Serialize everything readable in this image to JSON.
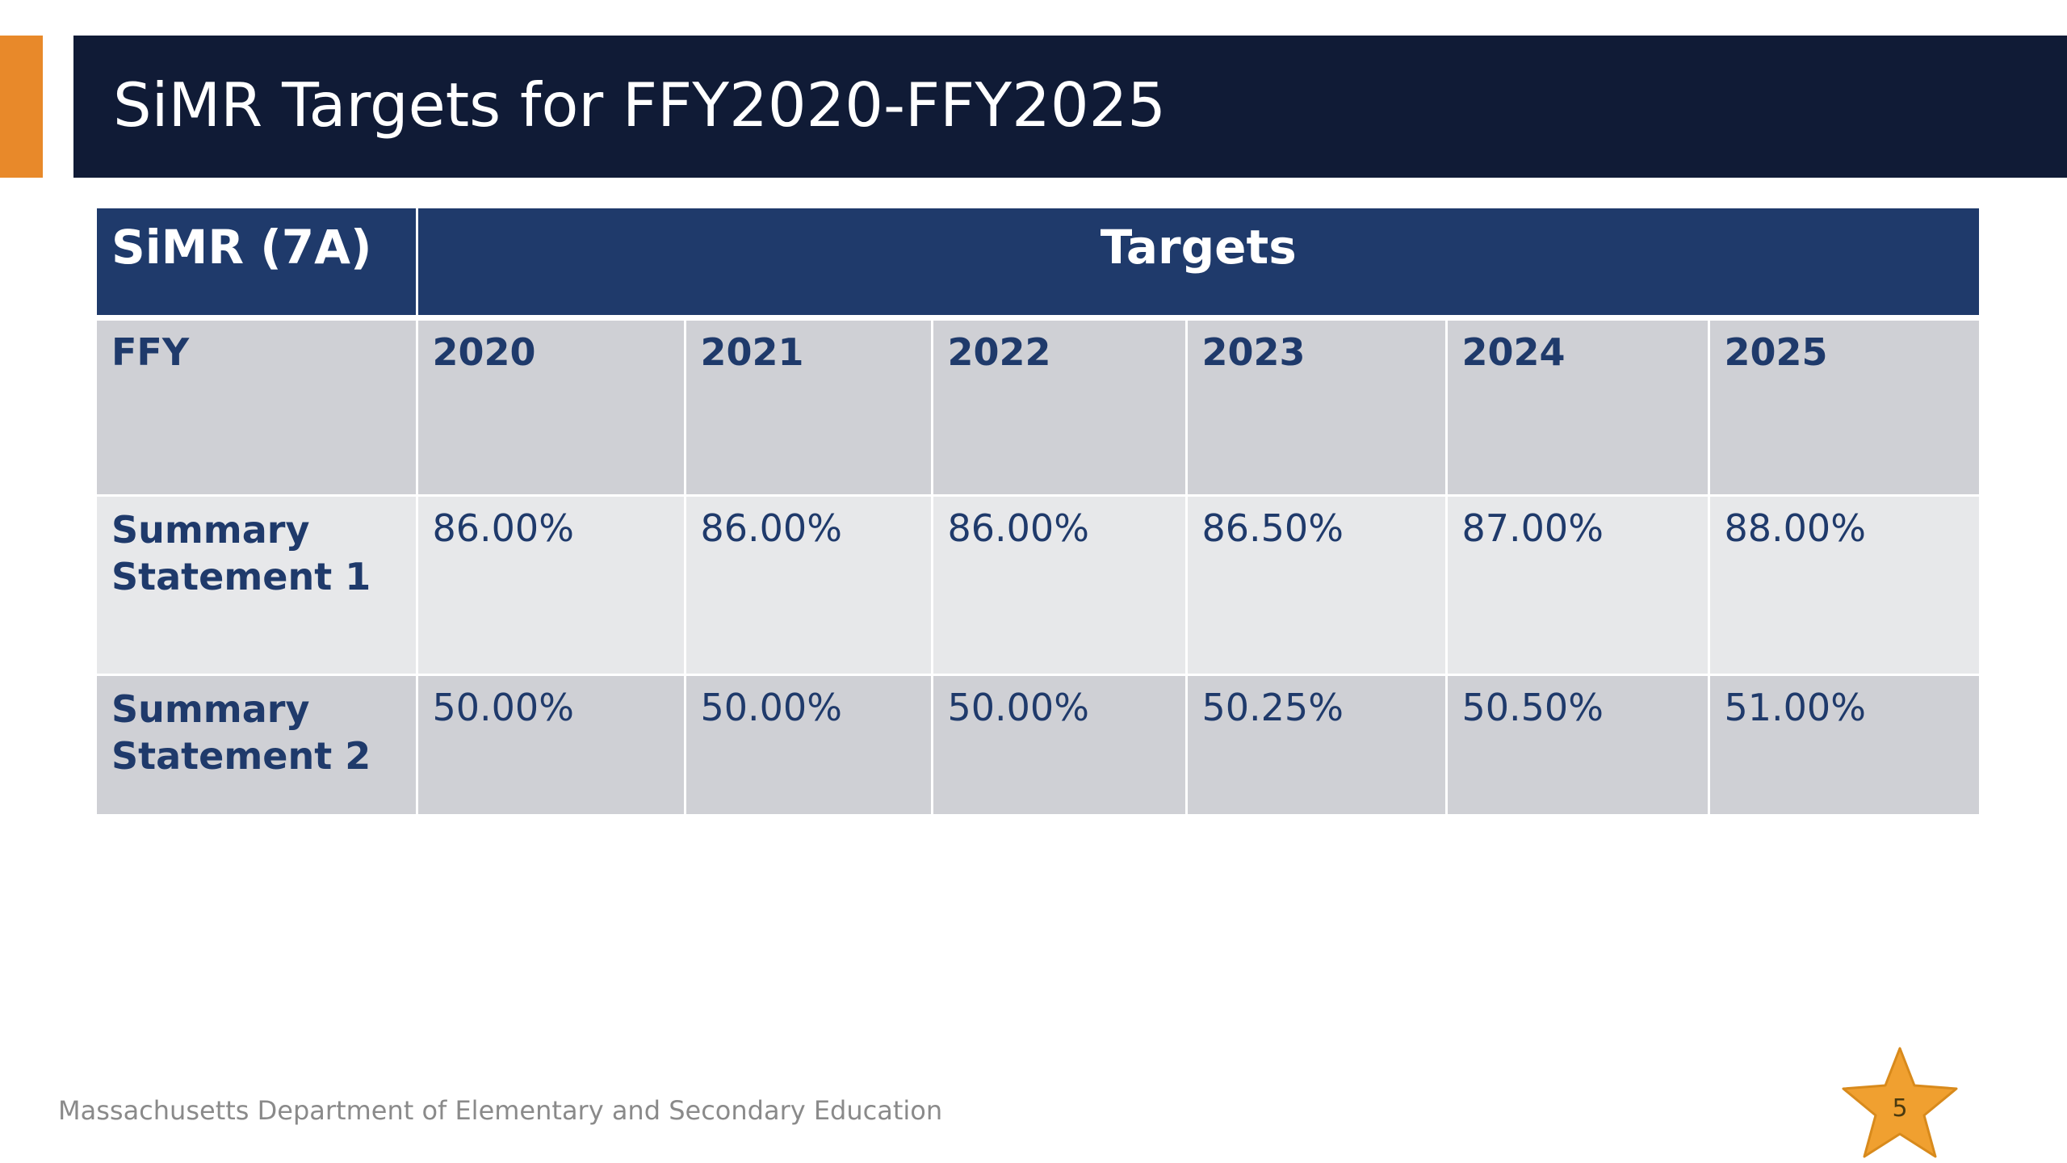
{
  "title": "SiMR Targets for FFY2020-FFY2025",
  "table": {
    "header_label": "SiMR (7A)",
    "header_span": "Targets",
    "fiscal_year_label": "FFY",
    "years": [
      "2020",
      "2021",
      "2022",
      "2023",
      "2024",
      "2025"
    ],
    "rows": [
      {
        "label_line1": "Summary",
        "label_line2": "Statement 1",
        "values": [
          "86.00%",
          "86.00%",
          "86.00%",
          "86.50%",
          "87.00%",
          "88.00%"
        ]
      },
      {
        "label_line1": "Summary",
        "label_line2": "Statement 2",
        "values": [
          "50.00%",
          "50.00%",
          "50.00%",
          "50.25%",
          "50.50%",
          "51.00%"
        ]
      }
    ]
  },
  "footer": "Massachusetts Department of Elementary and Secondary Education",
  "page_number": "5",
  "colors": {
    "accent": "#e8892a",
    "title_bar": "#101b36",
    "table_header": "#1f3a6b",
    "star": "#f0a030"
  },
  "icons": {
    "page_marker": "star-icon"
  }
}
